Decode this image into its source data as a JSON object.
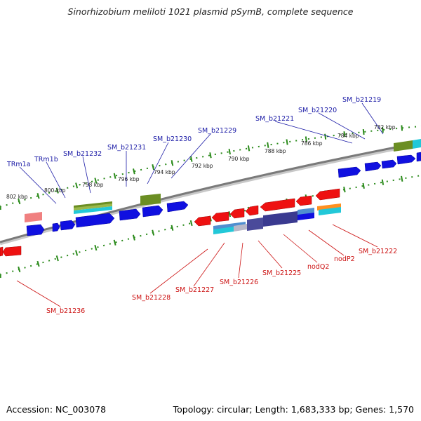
{
  "title": "Sinorhizobium meliloti 1021 plasmid pSymB, complete sequence",
  "footer": {
    "accession": "Accession: NC_003078",
    "summary": "Topology: circular; Length: 1,683,333 bp; Genes: 1,570"
  },
  "colors": {
    "forward_gene": "#1010e0",
    "reverse_gene": "#ee1111",
    "label_forward": "#1a1aa6",
    "label_reverse": "#cc1111",
    "backbone": "#808080",
    "tick": "#2a8a1a",
    "cog_olive": "#6b8e23",
    "cog_cyan": "#22c8d8",
    "cog_pink": "#f08080",
    "cog_navy": "#3a3a90",
    "cog_lightblue": "#4f8fd0",
    "cog_orange": "#ff9020"
  },
  "scale_labels": [
    "802 kbp",
    "800 kbp",
    "798 kbp",
    "796 kbp",
    "794 kbp",
    "792 kbp",
    "790 kbp",
    "788 kbp",
    "786 kbp",
    "784 kbp",
    "782 kbp"
  ],
  "forward_labels": [
    "TRm1a",
    "TRm1b",
    "SM_b21232",
    "SM_b21231",
    "SM_b21230",
    "SM_b21229",
    "SM_b21221",
    "SM_b21220",
    "SM_b21219"
  ],
  "reverse_labels": [
    "SM_b21236",
    "SM_b21228",
    "SM_b21227",
    "SM_b21226",
    "SM_b21225",
    "nodQ2",
    "nodP2",
    "SM_b21222"
  ]
}
